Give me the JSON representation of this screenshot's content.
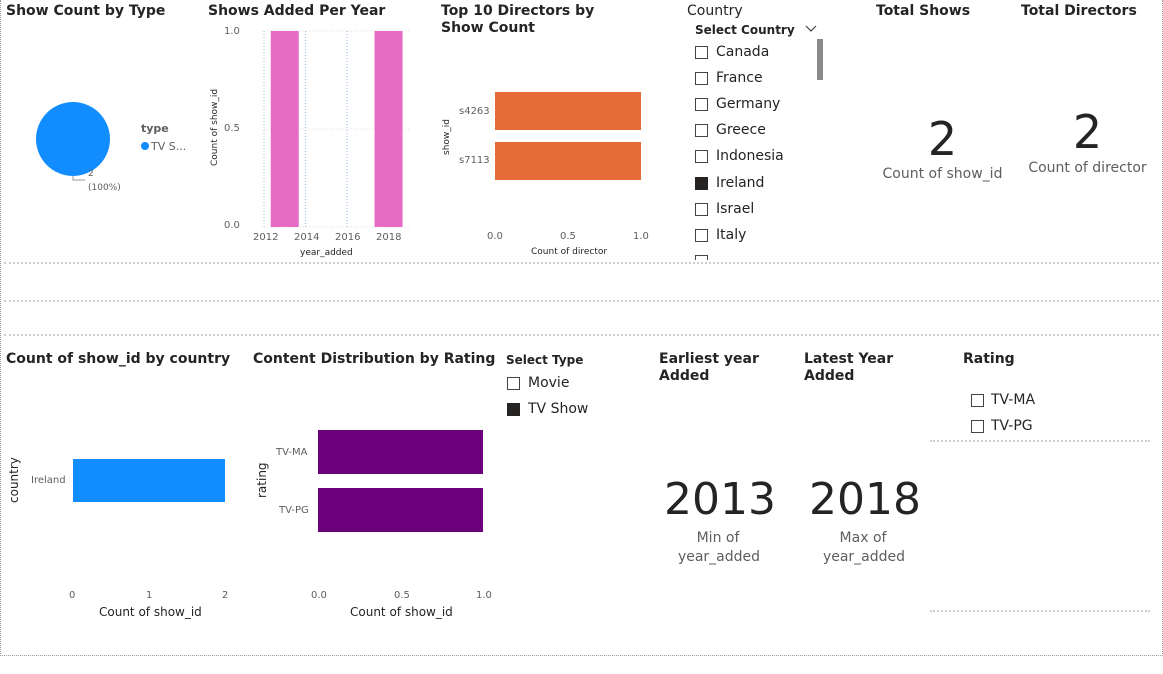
{
  "visuals": {
    "type_pie": {
      "title": "Show Count by Type",
      "legend_title": "type",
      "legend_item": "TV S...",
      "slice_label_count": "2",
      "slice_label_pct": "(100%)",
      "color": "#118DFF"
    },
    "shows_per_year": {
      "title": "Shows Added Per Year",
      "ylabel": "Count of show_id",
      "xlabel": "year_added",
      "yticks": [
        "1.0",
        "0.5",
        "0.0"
      ],
      "xticks": [
        "2012",
        "2014",
        "2016",
        "2018"
      ],
      "color": "#E66C37"
    },
    "top_directors": {
      "title": "Top 10 Directors by Show Count",
      "ylabel": "show_id",
      "xlabel": "Count of director",
      "categories": [
        "s4263",
        "s7113"
      ],
      "xticks": [
        "0.0",
        "0.5",
        "1.0"
      ],
      "color": "#E66C37"
    },
    "country_slicer": {
      "title": "Country",
      "header": "Select Country",
      "items": [
        {
          "label": "Canada",
          "checked": false
        },
        {
          "label": "France",
          "checked": false
        },
        {
          "label": "Germany",
          "checked": false
        },
        {
          "label": "Greece",
          "checked": false
        },
        {
          "label": "Indonesia",
          "checked": false
        },
        {
          "label": "Ireland",
          "checked": true
        },
        {
          "label": "Israel",
          "checked": false
        },
        {
          "label": "Italy",
          "checked": false
        }
      ]
    },
    "total_shows": {
      "title": "Total Shows",
      "value": "2",
      "caption": "Count of show_id"
    },
    "total_directors": {
      "title": "Total Directors",
      "value": "2",
      "caption": "Count of director"
    },
    "country_bar": {
      "title": "Count of show_id by country",
      "ylabel": "country",
      "xlabel": "Count of show_id",
      "categories": [
        "Ireland"
      ],
      "xticks": [
        "0",
        "1",
        "2"
      ],
      "color": "#118DFF"
    },
    "rating_bar": {
      "title": "Content Distribution by Rating",
      "ylabel": "rating",
      "xlabel": "Count of show_id",
      "categories": [
        "TV-MA",
        "TV-PG"
      ],
      "xticks": [
        "0.0",
        "0.5",
        "1.0"
      ],
      "color": "#6B007B"
    },
    "type_slicer": {
      "title": "Select Type",
      "items": [
        {
          "label": "Movie",
          "checked": false
        },
        {
          "label": "TV Show",
          "checked": true
        }
      ]
    },
    "earliest_year": {
      "title": "Earliest year Added",
      "value": "2013",
      "caption_line1": "Min of",
      "caption_line2": "year_added"
    },
    "latest_year": {
      "title": "Latest Year Added",
      "value": "2018",
      "caption_line1": "Max of",
      "caption_line2": "year_added"
    },
    "rating_slicer": {
      "title": "Rating",
      "items": [
        {
          "label": "TV-MA",
          "checked": false
        },
        {
          "label": "TV-PG",
          "checked": false
        }
      ]
    }
  },
  "chart_data": [
    {
      "type": "pie",
      "title": "Show Count by Type",
      "categories": [
        "TV Show"
      ],
      "values": [
        2
      ],
      "legend": "right"
    },
    {
      "type": "bar",
      "title": "Shows Added Per Year",
      "xlabel": "year_added",
      "ylabel": "Count of show_id",
      "x": [
        2013,
        2018
      ],
      "values": [
        1,
        1
      ],
      "xlim": [
        2012,
        2018.6
      ],
      "ylim": [
        0,
        1
      ],
      "grid": true
    },
    {
      "type": "bar",
      "orientation": "horizontal",
      "title": "Top 10 Directors by Show Count",
      "xlabel": "Count of director",
      "ylabel": "show_id",
      "categories": [
        "s4263",
        "s7113"
      ],
      "values": [
        1,
        1
      ],
      "xlim": [
        0,
        1
      ]
    },
    {
      "type": "bar",
      "orientation": "horizontal",
      "title": "Count of show_id by country",
      "xlabel": "Count of show_id",
      "ylabel": "country",
      "categories": [
        "Ireland"
      ],
      "values": [
        2
      ],
      "xlim": [
        0,
        2
      ]
    },
    {
      "type": "bar",
      "orientation": "horizontal",
      "title": "Content Distribution by Rating",
      "xlabel": "Count of show_id",
      "ylabel": "rating",
      "categories": [
        "TV-MA",
        "TV-PG"
      ],
      "values": [
        1,
        1
      ],
      "xlim": [
        0,
        1
      ]
    }
  ]
}
